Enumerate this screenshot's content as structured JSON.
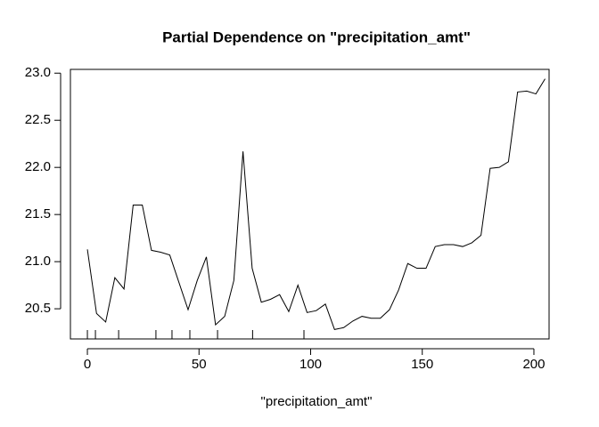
{
  "chart_data": {
    "type": "line",
    "title": "Partial Dependence on \"precipitation_amt\"",
    "x_label": "\"precipitation_amt\"",
    "x": [
      0,
      4.1,
      8.2,
      12.3,
      16.4,
      20.5,
      24.6,
      28.7,
      32.8,
      36.9,
      41,
      45.1,
      49.2,
      53.3,
      57.4,
      61.5,
      65.6,
      69.7,
      73.8,
      77.9,
      82,
      86.1,
      90.2,
      94.3,
      98.4,
      102.5,
      106.6,
      110.7,
      114.8,
      118.9,
      123,
      127.1,
      131.2,
      135.3,
      139.4,
      143.5,
      147.6,
      151.7,
      155.8,
      159.9,
      164,
      168.1,
      172.2,
      176.3,
      180.4,
      184.5,
      188.6,
      192.7,
      196.8,
      200.9,
      205
    ],
    "series": [
      {
        "color": "#000000",
        "values": [
          21.13,
          20.45,
          20.36,
          20.83,
          20.71,
          21.6,
          21.6,
          21.12,
          21.1,
          21.07,
          20.78,
          20.49,
          20.8,
          21.05,
          20.33,
          20.42,
          20.8,
          22.17,
          20.93,
          20.57,
          20.6,
          20.65,
          20.47,
          20.75,
          20.46,
          20.48,
          20.55,
          20.28,
          20.3,
          20.37,
          20.42,
          20.4,
          20.4,
          20.49,
          20.7,
          20.98,
          20.93,
          20.93,
          21.16,
          21.18,
          21.18,
          21.16,
          21.2,
          21.28,
          21.99,
          22.0,
          22.06,
          22.8,
          22.81,
          22.78,
          22.94
        ]
      }
    ],
    "rug": [
      0,
      3.6,
      14,
      30.7,
      37.9,
      45.9,
      58.3,
      74,
      97
    ],
    "xlim": [
      -7.6,
      206.8
    ],
    "ylim": [
      20.18,
      23.04
    ],
    "xticks": [
      0,
      50,
      100,
      150,
      200
    ],
    "yticks": [
      20.5,
      {
        "value": 21,
        "label": "21.0"
      },
      21.5,
      {
        "value": 22,
        "label": "22.0"
      },
      22.5,
      {
        "value": 23,
        "label": "23.0"
      }
    ]
  }
}
